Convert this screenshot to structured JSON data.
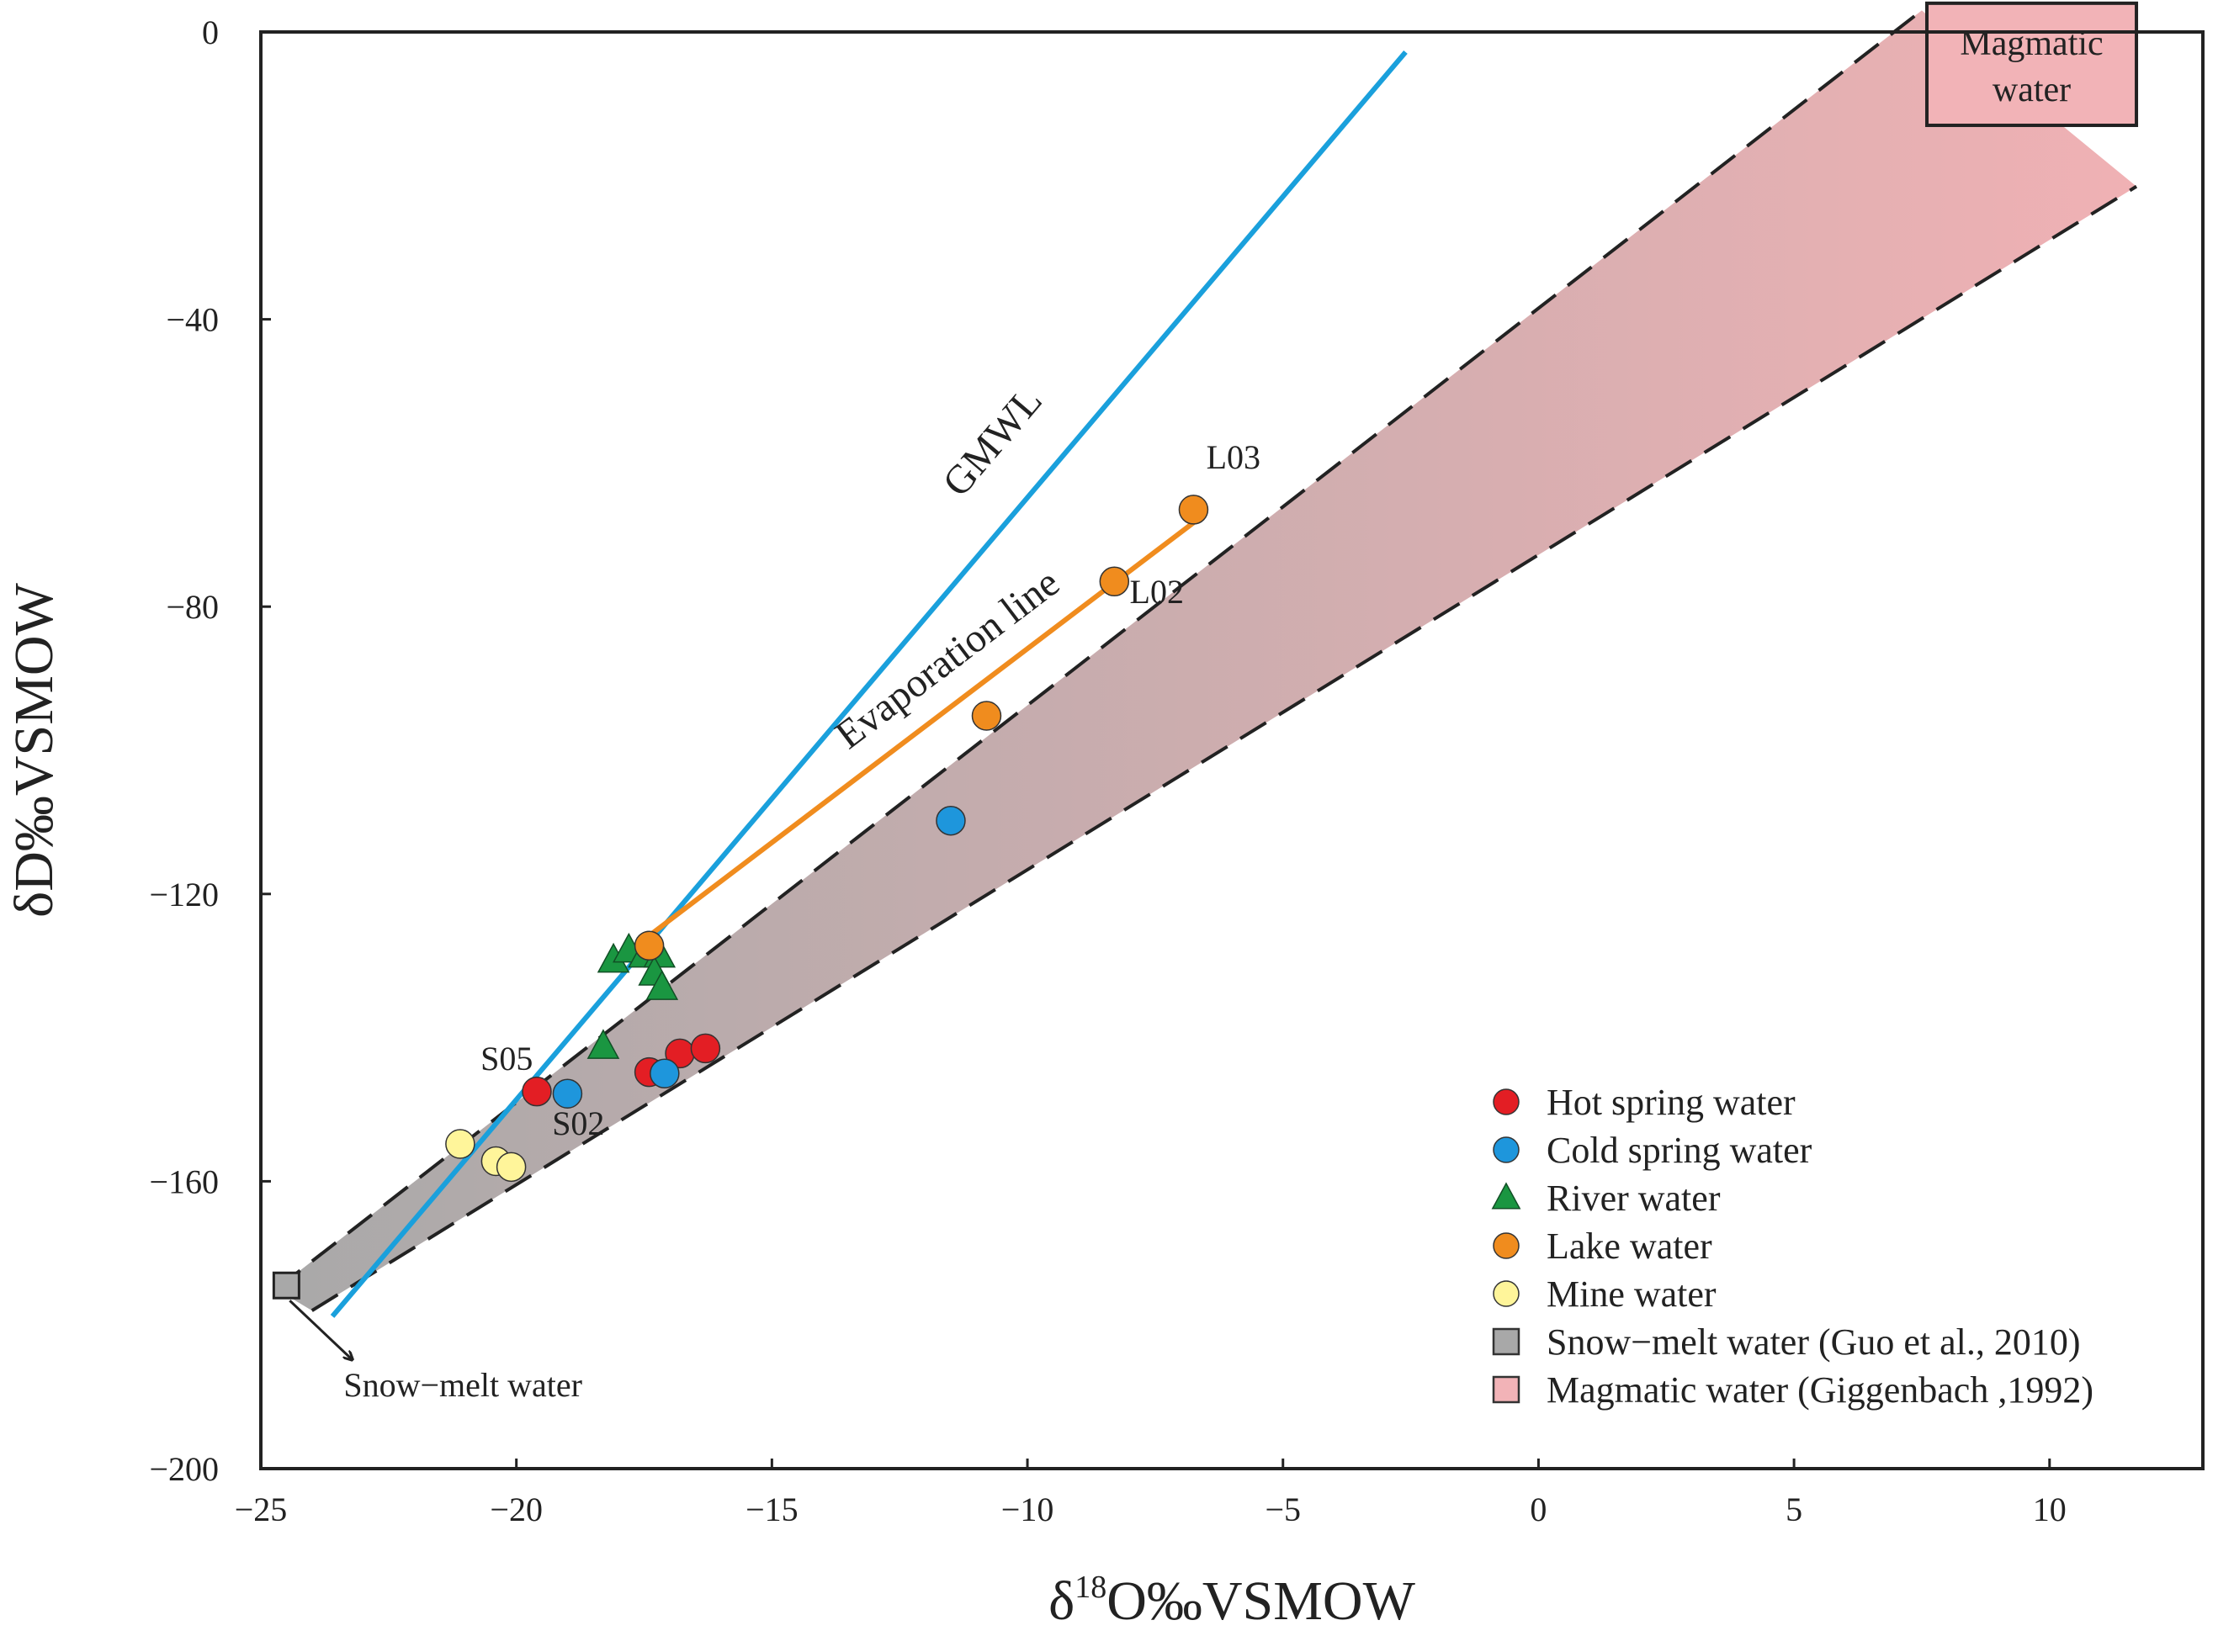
{
  "chart_data": {
    "type": "scatter",
    "xlabel_parts": [
      "δ",
      "18",
      "O‰VSMOW"
    ],
    "ylabel": "δD‰VSMOW",
    "xlim": [
      -25,
      13
    ],
    "ylim": [
      -200,
      0
    ],
    "x_ticks": [
      -25,
      -20,
      -15,
      -10,
      -5,
      0,
      5,
      10
    ],
    "x_tick_labels": [
      "−25",
      "−20",
      "−15",
      "−10",
      "−5",
      "0",
      "5",
      "10"
    ],
    "y_ticks": [
      0,
      -40,
      -80,
      -120,
      -160,
      -200
    ],
    "y_tick_labels": [
      "0",
      "−40",
      "−80",
      "−120",
      "−160",
      "−200"
    ],
    "series": [
      {
        "name": "Hot spring water",
        "marker": "circle",
        "color": "#e31e24",
        "points": [
          [
            -19.6,
            -147.5
          ],
          [
            -17.4,
            -144.8
          ],
          [
            -16.8,
            -142.2
          ],
          [
            -16.3,
            -141.5
          ]
        ]
      },
      {
        "name": "Cold spring water",
        "marker": "circle",
        "color": "#1e96dc",
        "points": [
          [
            -19.0,
            -147.8
          ],
          [
            -17.1,
            -145.0
          ],
          [
            -11.5,
            -109.8
          ]
        ]
      },
      {
        "name": "River water",
        "marker": "triangle",
        "color": "#1a9641",
        "points": [
          [
            -18.1,
            -129.2
          ],
          [
            -17.8,
            -127.8
          ],
          [
            -17.5,
            -128.5
          ],
          [
            -17.2,
            -128.5
          ],
          [
            -17.3,
            -131.0
          ],
          [
            -17.15,
            -133.0
          ],
          [
            -18.3,
            -141.2
          ]
        ]
      },
      {
        "name": "Lake water",
        "marker": "circle",
        "color": "#f08c1e",
        "points": [
          [
            -17.4,
            -127.2
          ],
          [
            -10.8,
            -95.2
          ],
          [
            -8.3,
            -76.5
          ],
          [
            -6.75,
            -66.5
          ]
        ]
      },
      {
        "name": "Mine water",
        "marker": "circle",
        "color": "#fff59a",
        "points": [
          [
            -21.1,
            -154.8
          ],
          [
            -20.4,
            -157.2
          ],
          [
            -20.1,
            -158.0
          ]
        ]
      }
    ],
    "point_labels": [
      {
        "text": "S05"
      },
      {
        "text": "S02"
      },
      {
        "text": "L02"
      },
      {
        "text": "L03"
      }
    ],
    "lines": [
      {
        "name": "GMWL",
        "color": "#1aa0dc",
        "from": [
          -23.6,
          -178.8
        ],
        "to": [
          -2.6,
          -2.8
        ]
      },
      {
        "name": "Evaporation line",
        "color": "#f08c1e",
        "from": [
          -17.4,
          -125.8
        ],
        "to": [
          -6.6,
          -67.5
        ]
      }
    ],
    "regions": {
      "band": {
        "upper": {
          "from": [
            -24.7,
            -175.0
          ],
          "to": [
            7.5,
            3.0
          ]
        },
        "lower": {
          "from": [
            -24.0,
            -178.0
          ],
          "to": [
            11.7,
            -21.5
          ]
        },
        "colors": [
          "#a9a9a9",
          "#f0b1b4"
        ]
      },
      "magmatic_box": {
        "x": [
          7.6,
          11.7
        ],
        "y": [
          4.0,
          -13.0
        ],
        "color": "#f2b3b7",
        "label": [
          "Magmatic",
          "water"
        ]
      },
      "snowmelt_marker": {
        "x": -24.5,
        "y": -174.5,
        "color": "#a8a8a8"
      }
    },
    "snowmelt_label": "Snow−melt water",
    "legend": {
      "position": "bottom-right",
      "entries": [
        {
          "label": "Hot spring water",
          "marker": "circle",
          "color": "#e31e24"
        },
        {
          "label": "Cold spring water",
          "marker": "circle",
          "color": "#1e96dc"
        },
        {
          "label": "River water",
          "marker": "triangle",
          "color": "#1a9641"
        },
        {
          "label": "Lake water",
          "marker": "circle",
          "color": "#f08c1e"
        },
        {
          "label": "Mine water",
          "marker": "circle",
          "color": "#fff59a"
        },
        {
          "label": "Snow−melt water (Guo et al., 2010)",
          "marker": "square",
          "color": "#a8a8a8"
        },
        {
          "label": "Magmatic water (Giggenbach ,1992)",
          "marker": "square",
          "color": "#f2b3b7"
        }
      ]
    }
  }
}
